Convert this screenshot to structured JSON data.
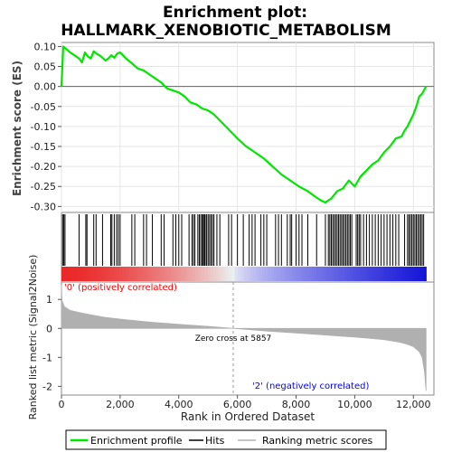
{
  "title": "Enrichment plot:",
  "subtitle": "HALLMARK_XENOBIOTIC_METABOLISM",
  "es_ylabel": "Enrichment score (ES)",
  "rank_ylabel": "Ranked list metric (Signal2Noise)",
  "xlabel": "Rank in Ordered Dataset",
  "zero_cross_label": "Zero cross at 5857",
  "positive_label": "'0' (positively correlated)",
  "negative_label": "'2' (negatively correlated)",
  "legend": {
    "enrichment_profile": "Enrichment profile",
    "hits": "Hits",
    "ranking_metric": "Ranking metric scores"
  },
  "colors": {
    "profile": "#00e600",
    "hits": "#000000",
    "metric": "#b0b0b0",
    "positive_label": "#ff0000",
    "negative_label": "#0000ff"
  },
  "chart_data": {
    "type": "line",
    "x_ticks": [
      "0",
      "2,000",
      "4,000",
      "6,000",
      "8,000",
      "10,000",
      "12,000"
    ],
    "x_tick_values": [
      0,
      2000,
      4000,
      6000,
      8000,
      10000,
      12000
    ],
    "xlim": [
      0,
      12700
    ],
    "es_ylim": [
      -0.315,
      0.11
    ],
    "es_ticks": [
      "0.10",
      "0.05",
      "0.00",
      "-0.05",
      "-0.10",
      "-0.15",
      "-0.20",
      "-0.25",
      "-0.30"
    ],
    "es_tick_values": [
      0.1,
      0.05,
      0.0,
      -0.05,
      -0.1,
      -0.15,
      -0.2,
      -0.25,
      -0.3
    ],
    "rank_ylim": [
      -2.3,
      1.6
    ],
    "rank_ticks": [
      "1",
      "0",
      "-1",
      "-2"
    ],
    "rank_tick_values": [
      1,
      0,
      -1,
      -2
    ],
    "zero_cross": 5857,
    "n_genes": 12432,
    "enrichment_profile": {
      "x": [
        0,
        60,
        300,
        600,
        700,
        800,
        900,
        1000,
        1100,
        1200,
        1350,
        1500,
        1600,
        1700,
        1800,
        1900,
        2000,
        2200,
        2400,
        2600,
        2800,
        3000,
        3200,
        3400,
        3600,
        3800,
        4000,
        4200,
        4400,
        4600,
        4800,
        5000,
        5200,
        5400,
        5600,
        5800,
        6000,
        6300,
        6600,
        6900,
        7200,
        7500,
        7800,
        8100,
        8400,
        8700,
        8850,
        9000,
        9200,
        9400,
        9600,
        9800,
        10000,
        10200,
        10400,
        10600,
        10800,
        11000,
        11200,
        11400,
        11600,
        11700,
        11800,
        11900,
        12000,
        12100,
        12200,
        12300,
        12432
      ],
      "y": [
        0.0,
        0.1,
        0.085,
        0.07,
        0.06,
        0.085,
        0.075,
        0.07,
        0.088,
        0.082,
        0.075,
        0.065,
        0.07,
        0.078,
        0.072,
        0.082,
        0.085,
        0.07,
        0.058,
        0.045,
        0.04,
        0.03,
        0.02,
        0.01,
        -0.005,
        -0.01,
        -0.015,
        -0.025,
        -0.04,
        -0.045,
        -0.055,
        -0.06,
        -0.07,
        -0.085,
        -0.1,
        -0.115,
        -0.13,
        -0.15,
        -0.165,
        -0.18,
        -0.2,
        -0.22,
        -0.235,
        -0.25,
        -0.262,
        -0.278,
        -0.285,
        -0.29,
        -0.28,
        -0.262,
        -0.255,
        -0.235,
        -0.25,
        -0.225,
        -0.21,
        -0.195,
        -0.185,
        -0.165,
        -0.15,
        -0.13,
        -0.125,
        -0.11,
        -0.1,
        -0.085,
        -0.07,
        -0.05,
        -0.025,
        -0.018,
        0.0
      ]
    },
    "hit_ranks": [
      40,
      80,
      120,
      600,
      830,
      870,
      1100,
      1180,
      1400,
      1680,
      1720,
      1800,
      1880,
      1940,
      2000,
      2400,
      2500,
      2800,
      2900,
      3100,
      3400,
      3500,
      3800,
      3900,
      4000,
      4100,
      4350,
      4450,
      4500,
      4550,
      4650,
      4700,
      4750,
      4800,
      4830,
      4870,
      4900,
      4950,
      5000,
      5050,
      5100,
      5150,
      5200,
      5300,
      5400,
      5700,
      5800,
      6000,
      6200,
      6400,
      6500,
      6600,
      6800,
      6900,
      7000,
      7300,
      7400,
      7500,
      7700,
      7800,
      7850,
      8000,
      8100,
      8200,
      8400,
      8700,
      9000,
      9100,
      9150,
      9200,
      9250,
      9300,
      9350,
      9400,
      9450,
      9500,
      9550,
      9600,
      9650,
      9700,
      9750,
      9800,
      9850,
      9900,
      10050,
      10100,
      10150,
      10200,
      10300,
      10400,
      10500,
      10600,
      10700,
      10800,
      10900,
      11000,
      11100,
      11200,
      11300,
      11400,
      11500,
      11700,
      11800,
      11850,
      11900,
      11950,
      12000,
      12050,
      12100,
      12150,
      12200,
      12250,
      12300,
      12350
    ],
    "ranking_metric": {
      "x": [
        0,
        20,
        100,
        300,
        600,
        1000,
        1500,
        2000,
        3000,
        4000,
        5000,
        5857,
        7000,
        8000,
        9000,
        10000,
        10500,
        11000,
        11500,
        11800,
        12000,
        12200,
        12300,
        12380,
        12432
      ],
      "y": [
        1.5,
        0.95,
        0.75,
        0.62,
        0.55,
        0.47,
        0.38,
        0.32,
        0.22,
        0.14,
        0.07,
        0.0,
        -0.09,
        -0.16,
        -0.23,
        -0.3,
        -0.34,
        -0.39,
        -0.47,
        -0.55,
        -0.63,
        -0.8,
        -1.0,
        -1.5,
        -2.15
      ]
    }
  }
}
